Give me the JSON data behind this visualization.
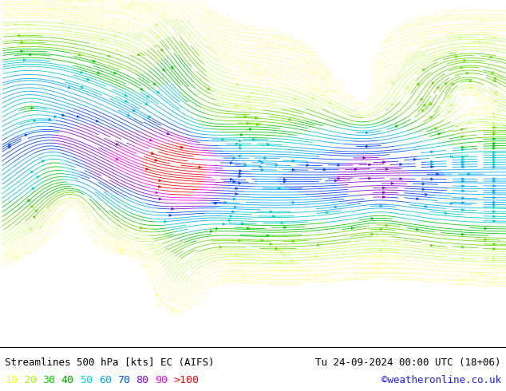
{
  "title_left": "Streamlines 500 hPa [kts] EC (AIFS)",
  "title_right": "Tu 24-09-2024 00:00 UTC (18+06)",
  "credit": "©weatheronline.co.uk",
  "legend_values": [
    "10",
    "20",
    "30",
    "40",
    "50",
    "60",
    "70",
    "80",
    "90",
    ">100"
  ],
  "legend_colors": [
    "#ffff00",
    "#aaff00",
    "#00dd00",
    "#00aa00",
    "#00dddd",
    "#00aaff",
    "#0055ff",
    "#8800ff",
    "#ff00ff",
    "#ff0000"
  ],
  "bg_color": "#ffffff",
  "map_bg": "#ffffff",
  "figsize": [
    6.34,
    4.9
  ],
  "dpi": 100,
  "bottom_bar_height": 0.115,
  "font_size_title": 9.0,
  "font_size_legend": 9.5,
  "font_size_credit": 9.0,
  "cmap_colors": [
    "#ffffff",
    "#ffff99",
    "#ccff66",
    "#66dd00",
    "#00cc00",
    "#00cccc",
    "#00aaff",
    "#0044ff",
    "#8800cc",
    "#ff00ff",
    "#ff0000"
  ],
  "cmap_bounds": [
    0,
    10,
    20,
    30,
    40,
    50,
    60,
    70,
    80,
    90,
    100,
    120
  ]
}
